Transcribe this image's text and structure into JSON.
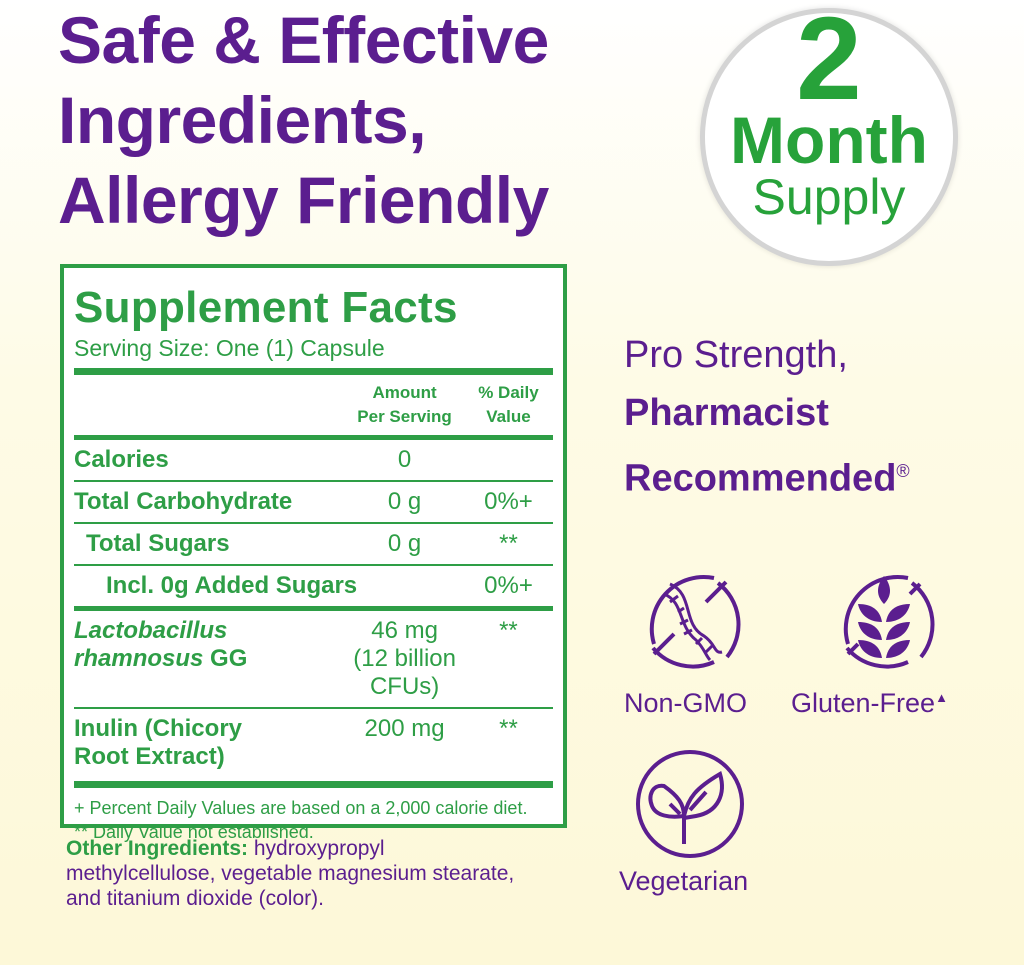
{
  "headline": {
    "line1": "Safe & Effective",
    "line2": "Ingredients,",
    "line3": "Allergy Friendly"
  },
  "badge": {
    "number": "2",
    "unit": "Month",
    "word": "Supply"
  },
  "facts": {
    "title": "Supplement Facts",
    "serving": "Serving Size: One (1) Capsule",
    "col_amount_1": "Amount",
    "col_amount_2": "Per Serving",
    "col_dv_1": "% Daily",
    "col_dv_2": "Value",
    "rows": [
      {
        "name": "Calories",
        "amount": "0",
        "dv": ""
      },
      {
        "name": "Total Carbohydrate",
        "amount": "0 g",
        "dv": "0%+"
      },
      {
        "name": "Total Sugars",
        "amount": "0 g",
        "dv": "**"
      },
      {
        "name": "Incl. 0g Added Sugars",
        "amount": "",
        "dv": "0%+"
      },
      {
        "name1": "Lactobacillus",
        "name2": "rhamnosus",
        "name2b": " GG",
        "amount1": "46 mg",
        "amount2": "(12 billion CFUs)",
        "dv": "**"
      },
      {
        "name1": "Inulin (Chicory",
        "name2": "Root Extract)",
        "amount": "200 mg",
        "dv": "**"
      }
    ],
    "foot1": "+ Percent Daily Values are based on a 2,000 calorie diet.",
    "foot2": "** Daily Value not established."
  },
  "other": {
    "label": "Other Ingredients:",
    "text": " hydroxypropyl methylcellulose, vegetable magnesium stearate, and titanium dioxide (color)."
  },
  "claim": {
    "line1": "Pro Strength,",
    "line2": "Pharmacist",
    "line3": "Recommended",
    "mark": "®"
  },
  "icons": [
    {
      "icon": "dna-crossed-icon",
      "label": "Non-GMO"
    },
    {
      "icon": "wheat-crossed-icon",
      "label": "Gluten-Free",
      "mark": "▲"
    },
    {
      "icon": "leaf-sprout-icon",
      "label": "Vegetarian"
    }
  ],
  "colors": {
    "purple": "#5b1e8f",
    "green": "#2e9e46",
    "badge_green": "#27a23a"
  }
}
